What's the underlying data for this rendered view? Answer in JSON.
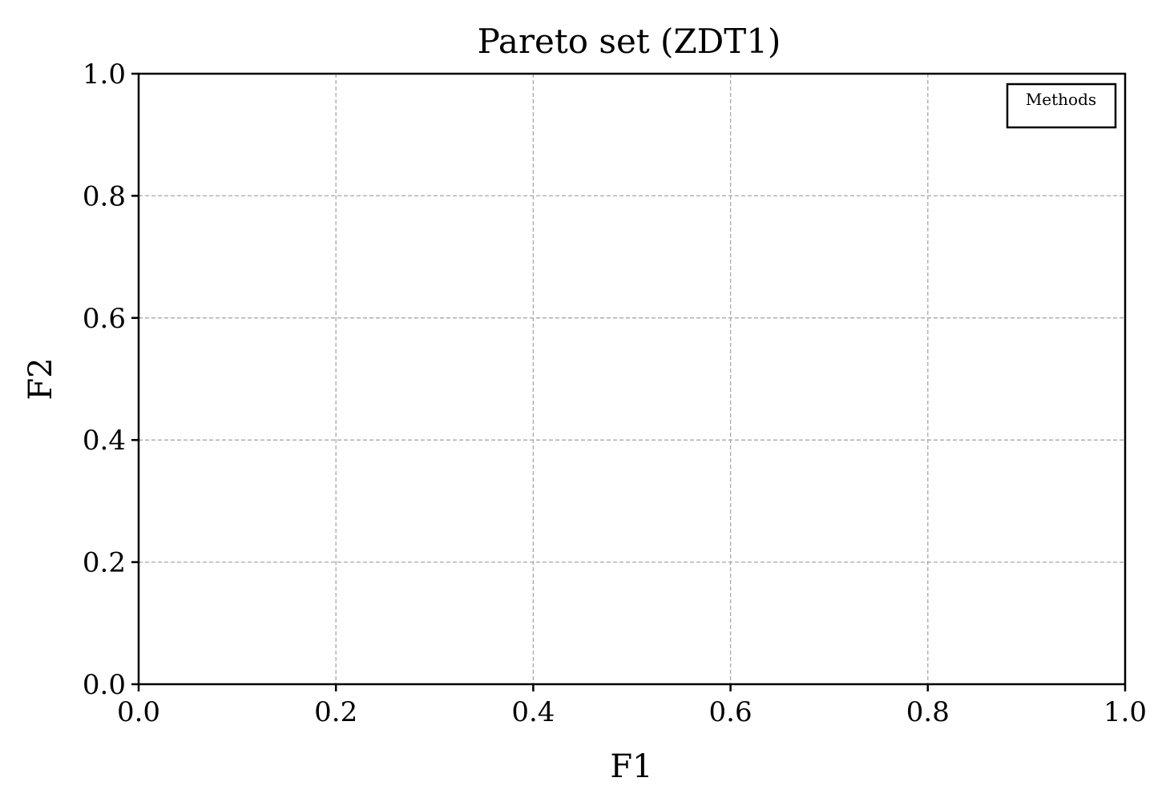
{
  "chart_data": {
    "type": "scatter",
    "title": "Pareto set (ZDT1)",
    "xlabel": "F1",
    "ylabel": "F2",
    "xlim": [
      0.0,
      1.0
    ],
    "ylim": [
      0.0,
      1.0
    ],
    "xticks": [
      0.0,
      0.2,
      0.4,
      0.6,
      0.8,
      1.0
    ],
    "yticks": [
      0.0,
      0.2,
      0.4,
      0.6,
      0.8,
      1.0
    ],
    "xtick_labels": [
      "0.0",
      "0.2",
      "0.4",
      "0.6",
      "0.8",
      "1.0"
    ],
    "ytick_labels": [
      "0.0",
      "0.2",
      "0.4",
      "0.6",
      "0.8",
      "1.0"
    ],
    "grid": true,
    "legend": {
      "title": "Methods",
      "placement": "top-right",
      "entries": []
    },
    "series": []
  }
}
